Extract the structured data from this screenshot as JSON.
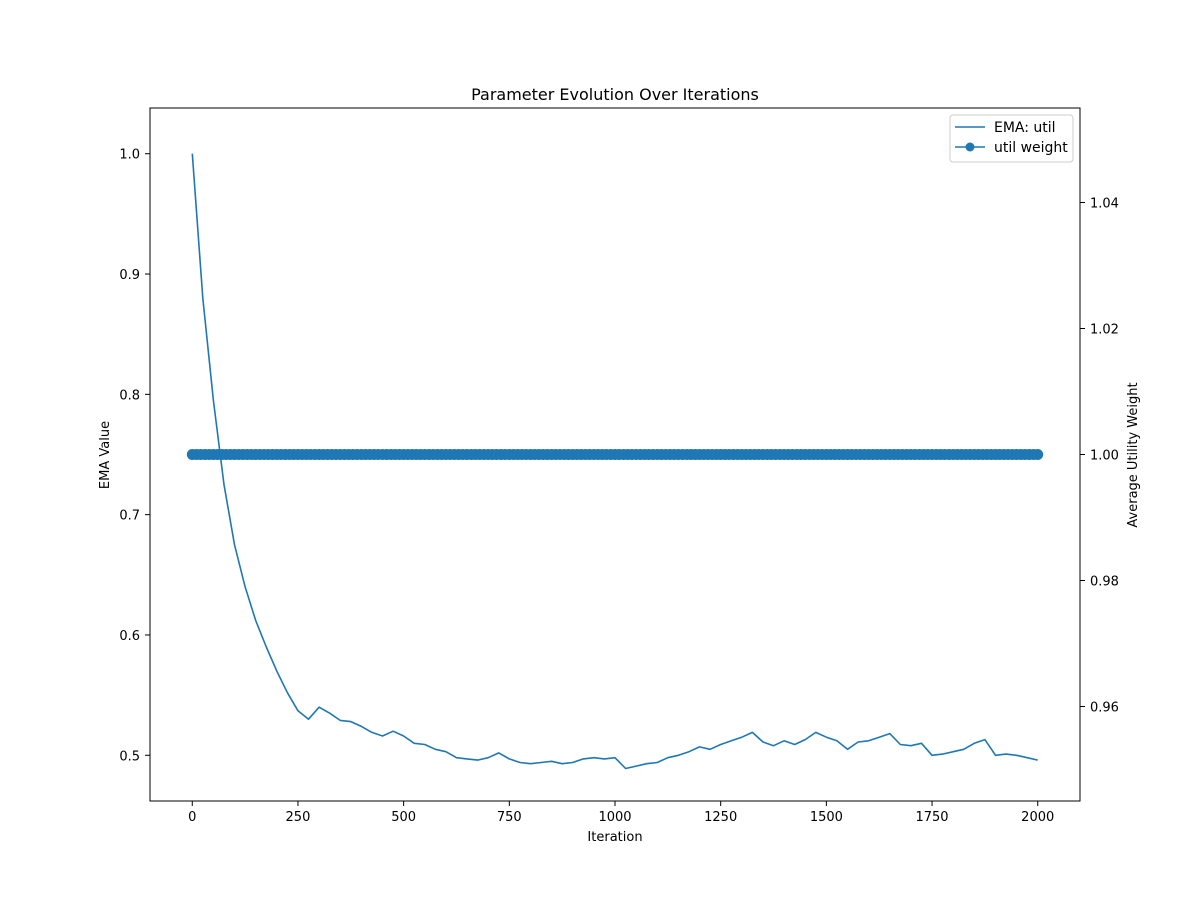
{
  "chart_data": {
    "type": "line",
    "title": "Parameter Evolution Over Iterations",
    "xlabel": "Iteration",
    "ylabel": "EMA Value",
    "y2label": "Average Utility Weight",
    "xlim": [
      -100,
      2100
    ],
    "ylim": [
      0.462,
      1.038
    ],
    "y2lim": [
      0.945,
      1.055
    ],
    "x_ticks": [
      0,
      250,
      500,
      750,
      1000,
      1250,
      1500,
      1750,
      2000
    ],
    "x_tick_labels": [
      "0",
      "250",
      "500",
      "750",
      "1000",
      "1250",
      "1500",
      "1750",
      "2000"
    ],
    "y_ticks": [
      0.5,
      0.6,
      0.7,
      0.8,
      0.9,
      1.0
    ],
    "y_tick_labels": [
      "0.5",
      "0.6",
      "0.7",
      "0.8",
      "0.9",
      "1.0"
    ],
    "y2_ticks": [
      0.96,
      0.98,
      1.0,
      1.02,
      1.04
    ],
    "y2_tick_labels": [
      "0.96",
      "0.98",
      "1.00",
      "1.02",
      "1.04"
    ],
    "grid": false,
    "legend_position": "top-right",
    "colors": {
      "series": "#1f77b4",
      "axes": "#000000",
      "background": "#ffffff"
    },
    "series": [
      {
        "name": "EMA: util",
        "axis": "left",
        "marker": "none",
        "x": [
          0,
          25,
          50,
          75,
          100,
          125,
          150,
          175,
          200,
          225,
          250,
          275,
          300,
          325,
          350,
          375,
          400,
          425,
          450,
          475,
          500,
          525,
          550,
          575,
          600,
          625,
          650,
          675,
          700,
          725,
          750,
          775,
          800,
          825,
          850,
          875,
          900,
          925,
          950,
          975,
          1000,
          1025,
          1050,
          1075,
          1100,
          1125,
          1150,
          1175,
          1200,
          1225,
          1250,
          1275,
          1300,
          1325,
          1350,
          1375,
          1400,
          1425,
          1450,
          1475,
          1500,
          1525,
          1550,
          1575,
          1600,
          1625,
          1650,
          1675,
          1700,
          1725,
          1750,
          1775,
          1800,
          1825,
          1850,
          1875,
          1900,
          1925,
          1950,
          1975,
          2000
        ],
        "values": [
          1.0,
          0.88,
          0.795,
          0.725,
          0.675,
          0.64,
          0.612,
          0.59,
          0.57,
          0.552,
          0.537,
          0.53,
          0.54,
          0.535,
          0.529,
          0.528,
          0.524,
          0.519,
          0.516,
          0.52,
          0.516,
          0.51,
          0.509,
          0.505,
          0.503,
          0.498,
          0.497,
          0.496,
          0.498,
          0.502,
          0.497,
          0.494,
          0.493,
          0.494,
          0.495,
          0.493,
          0.494,
          0.497,
          0.498,
          0.497,
          0.498,
          0.489,
          0.491,
          0.493,
          0.494,
          0.498,
          0.5,
          0.503,
          0.507,
          0.505,
          0.509,
          0.512,
          0.515,
          0.519,
          0.511,
          0.508,
          0.512,
          0.509,
          0.513,
          0.519,
          0.515,
          0.512,
          0.505,
          0.511,
          0.512,
          0.515,
          0.518,
          0.509,
          0.508,
          0.51,
          0.5,
          0.501,
          0.503,
          0.505,
          0.51,
          0.513,
          0.5,
          0.501,
          0.5,
          0.498,
          0.496
        ]
      },
      {
        "name": "util weight",
        "axis": "right",
        "marker": "circle",
        "x_start": 0,
        "x_end": 2000,
        "x_step": 10,
        "value": 1.0
      }
    ]
  }
}
